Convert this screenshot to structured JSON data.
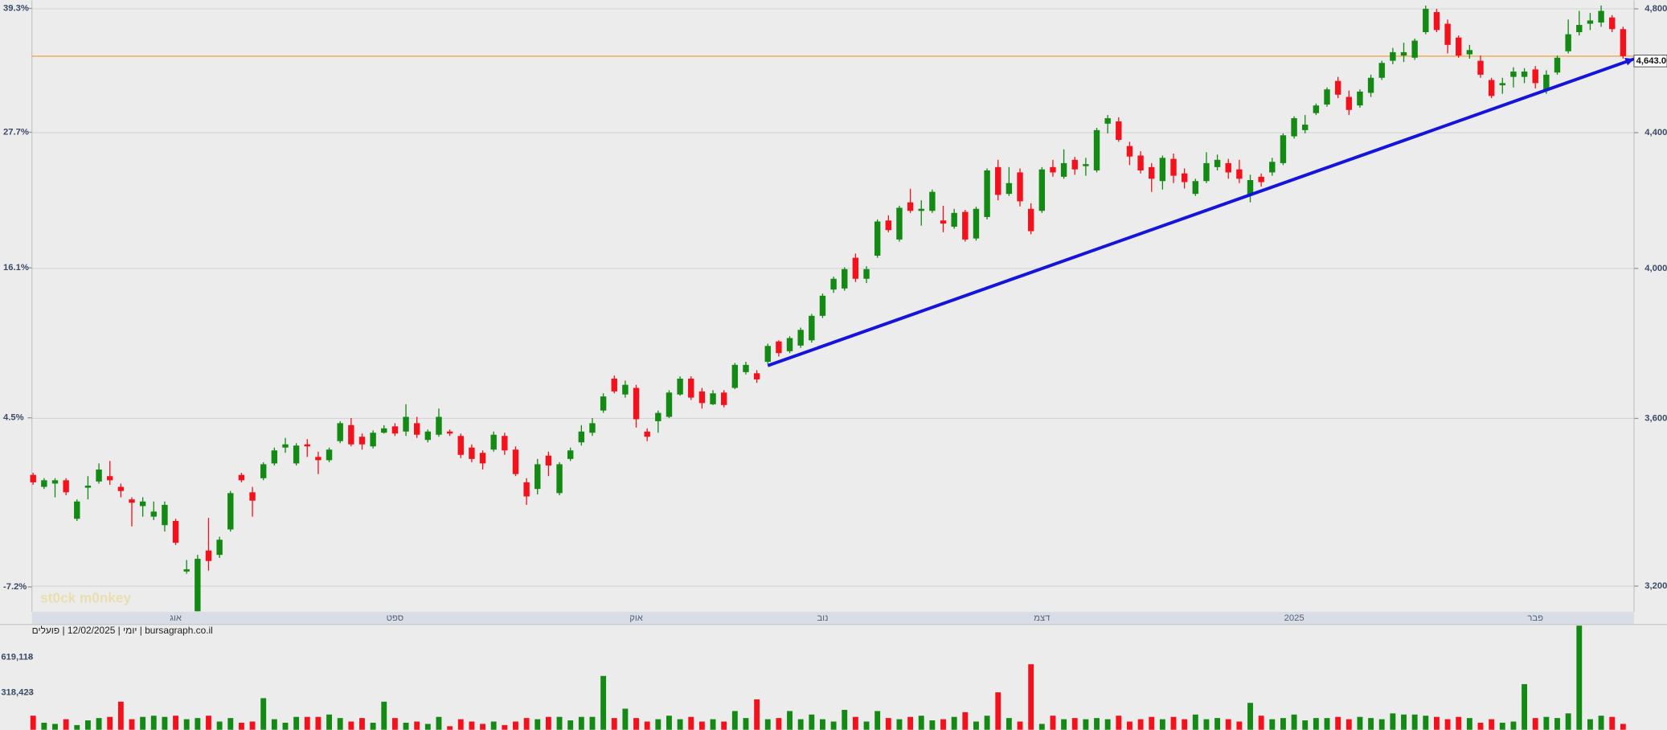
{
  "chart_data": {
    "type": "candlestick",
    "header": "יומי | 12/02/2025 | פועלים | bursagraph.co.il",
    "watermark": "st0ck m0nkey",
    "categories": [
      null,
      null,
      null,
      null,
      null,
      null,
      null,
      null,
      null,
      null,
      null,
      null,
      null,
      "אוג",
      null,
      null,
      null,
      null,
      null,
      null,
      null,
      null,
      null,
      null,
      null,
      null,
      null,
      null,
      null,
      null,
      null,
      null,
      null,
      "ספט",
      null,
      null,
      null,
      null,
      null,
      null,
      null,
      null,
      null,
      null,
      null,
      null,
      null,
      null,
      null,
      null,
      null,
      null,
      null,
      null,
      null,
      "אוק",
      null,
      null,
      null,
      null,
      null,
      null,
      null,
      null,
      null,
      null,
      null,
      null,
      null,
      null,
      null,
      null,
      "נוב",
      null,
      null,
      null,
      null,
      null,
      null,
      null,
      null,
      null,
      null,
      null,
      null,
      null,
      null,
      null,
      null,
      null,
      null,
      null,
      "דצמ",
      null,
      null,
      null,
      null,
      null,
      null,
      null,
      null,
      null,
      null,
      null,
      null,
      null,
      null,
      null,
      null,
      null,
      null,
      null,
      null,
      null,
      null,
      "2025",
      null,
      null,
      null,
      null,
      null,
      null,
      null,
      null,
      null,
      null,
      null,
      null,
      null,
      null,
      null,
      null,
      null,
      null,
      null,
      null,
      null,
      "פבר",
      null,
      null,
      null,
      null,
      null,
      null,
      null,
      null
    ],
    "open": [
      3460,
      3431,
      3439,
      3447,
      3355,
      3429,
      3444,
      3457,
      3431,
      3401,
      3385,
      3360,
      3340,
      3350,
      3233,
      3144,
      3281,
      3271,
      3330,
      3460,
      3418,
      3452,
      3488,
      3527,
      3488,
      3535,
      3504,
      3496,
      3543,
      3583,
      3554,
      3530,
      3564,
      3580,
      3567,
      3588,
      3546,
      3559,
      3567,
      3556,
      3527,
      3514,
      3522,
      3556,
      3522,
      3442,
      3426,
      3507,
      3416,
      3499,
      3540,
      3564,
      3620,
      3702,
      3661,
      3678,
      3567,
      3593,
      3604,
      3661,
      3702,
      3669,
      3636,
      3666,
      3678,
      3719,
      3716,
      3746,
      3800,
      3774,
      3789,
      3803,
      3869,
      3941,
      3944,
      4030,
      3971,
      4036,
      4137,
      4082,
      4190,
      4165,
      4165,
      4137,
      4119,
      4162,
      4085,
      4147,
      4295,
      4215,
      4279,
      4171,
      4165,
      4295,
      4266,
      4317,
      4298,
      4285,
      4428,
      4435,
      4359,
      4330,
      4295,
      4253,
      4320,
      4276,
      4215,
      4253,
      4295,
      4307,
      4288,
      4212,
      4266,
      4279,
      4307,
      4389,
      4408,
      4461,
      4488,
      4563,
      4512,
      4485,
      4525,
      4573,
      4628,
      4645,
      4638,
      4722,
      4789,
      4750,
      4704,
      4649,
      4628,
      4566,
      4549,
      4576,
      4576,
      4600,
      4532,
      4590,
      4659,
      4722,
      4750,
      4754,
      4771,
      4732
    ],
    "high": [
      3465,
      3452,
      3452,
      3452,
      3401,
      3457,
      3488,
      3494,
      3439,
      3406,
      3406,
      3396,
      3396,
      3355,
      3259,
      3271,
      3357,
      3313,
      3421,
      3465,
      3431,
      3491,
      3527,
      3551,
      3538,
      3548,
      3517,
      3527,
      3593,
      3601,
      3562,
      3570,
      3583,
      3588,
      3636,
      3604,
      3572,
      3625,
      3572,
      3562,
      3535,
      3520,
      3567,
      3564,
      3530,
      3452,
      3499,
      3517,
      3491,
      3527,
      3583,
      3601,
      3664,
      3710,
      3697,
      3686,
      3575,
      3620,
      3672,
      3708,
      3708,
      3678,
      3672,
      3672,
      3743,
      3746,
      3724,
      3794,
      3803,
      3814,
      3837,
      3874,
      3930,
      3977,
      4003,
      4042,
      4006,
      4140,
      4152,
      4180,
      4230,
      4196,
      4228,
      4180,
      4171,
      4168,
      4177,
      4291,
      4317,
      4295,
      4291,
      4187,
      4295,
      4317,
      4349,
      4326,
      4323,
      4415,
      4455,
      4448,
      4372,
      4343,
      4307,
      4330,
      4336,
      4291,
      4260,
      4340,
      4333,
      4320,
      4317,
      4272,
      4276,
      4323,
      4398,
      4451,
      4455,
      4491,
      4542,
      4576,
      4532,
      4536,
      4583,
      4628,
      4670,
      4687,
      4701,
      4811,
      4800,
      4764,
      4711,
      4680,
      4645,
      4573,
      4573,
      4607,
      4604,
      4611,
      4597,
      4645,
      4764,
      4793,
      4786,
      4811,
      4779,
      4740
    ],
    "low": [
      3436,
      3426,
      3406,
      3411,
      3350,
      3401,
      3439,
      3436,
      3406,
      3337,
      3360,
      3352,
      3325,
      3294,
      3228,
      3144,
      3235,
      3264,
      3325,
      3442,
      3360,
      3447,
      3483,
      3514,
      3483,
      3504,
      3462,
      3491,
      3538,
      3530,
      3522,
      3525,
      3562,
      3556,
      3556,
      3551,
      3540,
      3554,
      3556,
      3501,
      3491,
      3473,
      3517,
      3509,
      3457,
      3388,
      3413,
      3457,
      3411,
      3494,
      3532,
      3556,
      3614,
      3664,
      3653,
      3577,
      3543,
      3564,
      3601,
      3658,
      3647,
      3625,
      3634,
      3628,
      3675,
      3713,
      3691,
      3741,
      3760,
      3769,
      3783,
      3797,
      3863,
      3932,
      3938,
      3962,
      3959,
      4030,
      4103,
      4076,
      4159,
      4122,
      4159,
      4103,
      4113,
      4076,
      4079,
      4140,
      4196,
      4209,
      4178,
      4097,
      4159,
      4266,
      4260,
      4272,
      4269,
      4279,
      4398,
      4372,
      4301,
      4276,
      4221,
      4228,
      4247,
      4231,
      4209,
      4247,
      4285,
      4260,
      4247,
      4190,
      4237,
      4269,
      4301,
      4382,
      4398,
      4455,
      4481,
      4508,
      4455,
      4478,
      4512,
      4566,
      4617,
      4624,
      4631,
      4715,
      4722,
      4652,
      4638,
      4635,
      4573,
      4508,
      4522,
      4542,
      4556,
      4539,
      4522,
      4583,
      4652,
      4711,
      4729,
      4740,
      4722,
      4635
    ],
    "close": [
      3442,
      3447,
      3447,
      3418,
      3396,
      3434,
      3473,
      3447,
      3421,
      3393,
      3396,
      3372,
      3388,
      3299,
      3238,
      3262,
      3257,
      3306,
      3416,
      3447,
      3398,
      3486,
      3520,
      3535,
      3532,
      3530,
      3496,
      3522,
      3588,
      3535,
      3535,
      3564,
      3575,
      3562,
      3604,
      3559,
      3567,
      3604,
      3562,
      3509,
      3499,
      3488,
      3559,
      3520,
      3462,
      3408,
      3486,
      3483,
      3486,
      3520,
      3567,
      3588,
      3656,
      3669,
      3686,
      3598,
      3554,
      3614,
      3666,
      3702,
      3653,
      3639,
      3664,
      3634,
      3738,
      3738,
      3700,
      3788,
      3769,
      3809,
      3831,
      3869,
      3924,
      3971,
      3998,
      3971,
      3998,
      4134,
      4109,
      4174,
      4165,
      4171,
      4221,
      4128,
      4159,
      4082,
      4171,
      4285,
      4212,
      4247,
      4193,
      4106,
      4288,
      4279,
      4307,
      4288,
      4304,
      4408,
      4445,
      4378,
      4327,
      4285,
      4260,
      4323,
      4269,
      4250,
      4253,
      4307,
      4317,
      4279,
      4260,
      4256,
      4250,
      4311,
      4392,
      4445,
      4425,
      4485,
      4536,
      4519,
      4471,
      4529,
      4573,
      4621,
      4656,
      4656,
      4694,
      4800,
      4729,
      4680,
      4645,
      4663,
      4583,
      4515,
      4556,
      4593,
      4593,
      4556,
      4583,
      4638,
      4715,
      4746,
      4761,
      4793,
      4732,
      4643
    ],
    "up_color": "#138a13",
    "down_color": "#f5111c",
    "log_scale": true,
    "grid": true,
    "ylim": [
      3143,
      4829
    ],
    "yticks": [
      {
        "value": 3200,
        "label": "3,200"
      },
      {
        "value": 3600,
        "label": "3,600"
      },
      {
        "value": 4000,
        "label": "4,000"
      },
      {
        "value": 4400,
        "label": "4,400"
      },
      {
        "value": 4800,
        "label": "4,800"
      }
    ],
    "y2lim": [
      -8.8,
      40.1
    ],
    "y2ticks": [
      {
        "value": -7.2,
        "label": "-7.2%"
      },
      {
        "value": 4.5,
        "label": "4.5%"
      },
      {
        "value": 16.1,
        "label": "16.1%"
      },
      {
        "value": 27.7,
        "label": "27.7%"
      },
      {
        "value": 39.3,
        "label": "39.3%"
      }
    ],
    "hline": {
      "value": 4643,
      "label": "4,643.00",
      "color": "#f0a040"
    },
    "trendline": {
      "x": [
        67,
        146
      ],
      "y": [
        3736,
        4634
      ],
      "color": "#1414dc"
    },
    "volume": {
      "values": [
        120000,
        60000,
        50000,
        90000,
        40000,
        80000,
        100000,
        110000,
        240000,
        90000,
        110000,
        120000,
        110000,
        120000,
        90000,
        100000,
        120000,
        70000,
        100000,
        60000,
        70000,
        270000,
        90000,
        60000,
        110000,
        110000,
        110000,
        130000,
        100000,
        70000,
        100000,
        60000,
        240000,
        100000,
        60000,
        70000,
        50000,
        110000,
        30000,
        90000,
        70000,
        50000,
        70000,
        40000,
        70000,
        100000,
        90000,
        110000,
        110000,
        80000,
        110000,
        110000,
        460000,
        100000,
        180000,
        100000,
        70000,
        90000,
        120000,
        90000,
        110000,
        70000,
        90000,
        70000,
        160000,
        100000,
        260000,
        90000,
        100000,
        160000,
        90000,
        130000,
        90000,
        70000,
        170000,
        110000,
        70000,
        160000,
        100000,
        90000,
        110000,
        120000,
        80000,
        90000,
        110000,
        150000,
        70000,
        120000,
        320000,
        100000,
        70000,
        560000,
        50000,
        120000,
        90000,
        100000,
        90000,
        100000,
        90000,
        120000,
        70000,
        90000,
        110000,
        90000,
        110000,
        90000,
        130000,
        90000,
        100000,
        90000,
        70000,
        230000,
        120000,
        90000,
        100000,
        130000,
        80000,
        100000,
        100000,
        110000,
        90000,
        110000,
        100000,
        90000,
        140000,
        130000,
        130000,
        120000,
        110000,
        90000,
        110000,
        100000,
        60000,
        90000,
        60000,
        70000,
        390000,
        100000,
        110000,
        100000,
        140000,
        890000,
        90000,
        120000,
        110000,
        50000
      ],
      "ylim": [
        0,
        900000
      ],
      "yticks": [
        {
          "value": 318423,
          "label": "318,423"
        },
        {
          "value": 619118,
          "label": "619,118"
        }
      ]
    }
  }
}
